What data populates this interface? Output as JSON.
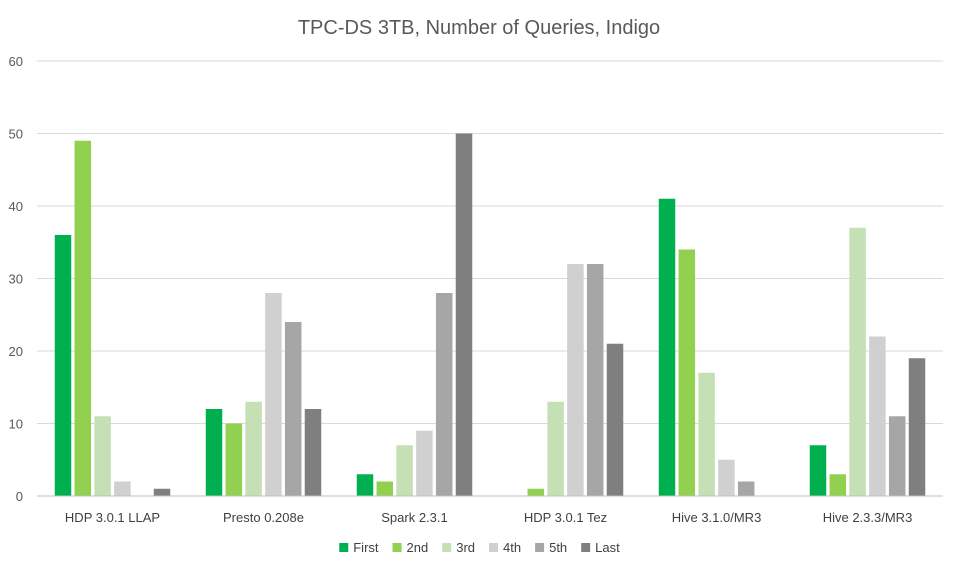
{
  "chart_data": {
    "type": "bar",
    "title": "TPC-DS 3TB, Number of Queries, Indigo",
    "xlabel": "",
    "ylabel": "",
    "ylim": [
      0,
      60
    ],
    "yticks": [
      0,
      10,
      20,
      30,
      40,
      50,
      60
    ],
    "grid": true,
    "legend_position": "bottom",
    "categories": [
      "HDP 3.0.1 LLAP",
      "Presto 0.208e",
      "Spark 2.3.1",
      "HDP 3.0.1 Tez",
      "Hive 3.1.0/MR3",
      "Hive 2.3.3/MR3"
    ],
    "series": [
      {
        "name": "First",
        "color": "#00b050",
        "values": [
          36,
          12,
          3,
          0,
          41,
          7
        ]
      },
      {
        "name": "2nd",
        "color": "#92d050",
        "values": [
          49,
          10,
          2,
          1,
          34,
          3
        ]
      },
      {
        "name": "3rd",
        "color": "#c5e0b4",
        "values": [
          11,
          13,
          7,
          13,
          17,
          37
        ]
      },
      {
        "name": "4th",
        "color": "#d0d0d0",
        "values": [
          2,
          28,
          9,
          32,
          5,
          22
        ]
      },
      {
        "name": "5th",
        "color": "#a6a6a6",
        "values": [
          0,
          24,
          28,
          32,
          2,
          11
        ]
      },
      {
        "name": "Last",
        "color": "#7f7f7f",
        "values": [
          1,
          12,
          50,
          21,
          0,
          19
        ]
      }
    ]
  }
}
